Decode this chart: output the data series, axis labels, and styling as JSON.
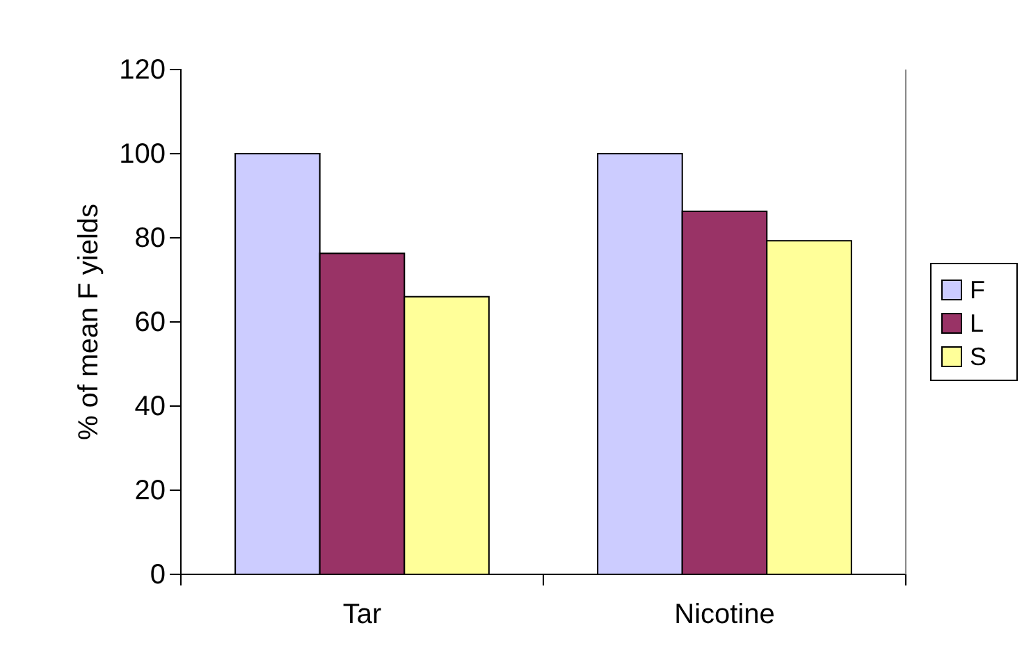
{
  "chart_data": {
    "type": "bar",
    "ylabel": "% of mean F yields",
    "categories": [
      "Tar",
      "Nicotine"
    ],
    "series": [
      {
        "name": "F",
        "color": "#ccccff",
        "values": [
          100,
          100
        ]
      },
      {
        "name": "L",
        "color": "#993366",
        "values": [
          76.3,
          86.3
        ]
      },
      {
        "name": "S",
        "color": "#ffff99",
        "values": [
          66,
          79.3
        ]
      }
    ],
    "ylim": [
      0,
      120
    ],
    "yticks": [
      0,
      20,
      40,
      60,
      80,
      100,
      120
    ],
    "legend": "right"
  }
}
